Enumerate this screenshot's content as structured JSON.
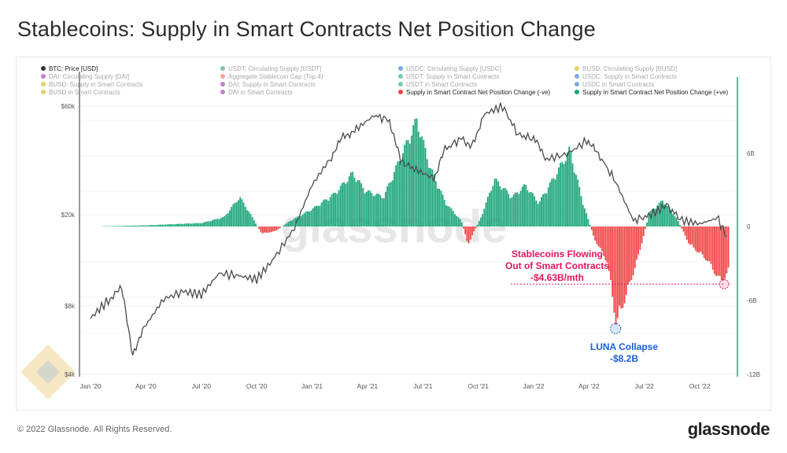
{
  "title": "Stablecoins: Supply in Smart Contracts Net Position Change",
  "footer": {
    "copyright": "© 2022 Glassnode. All Rights Reserved.",
    "brand": "glassnode"
  },
  "watermark": "glassnode",
  "colors": {
    "price": "#4a4a4a",
    "positive": "#1aa57a",
    "negative": "#f04545",
    "pink": "#e3165b",
    "blue": "#1a5fd6",
    "axis_right": "#1aa57a"
  },
  "chart_data": {
    "type": "bar",
    "legend": [
      {
        "label": "BTC: Price [USD]",
        "color": "#333333",
        "active": true
      },
      {
        "label": "USDT: Circulating Supply [USDT]",
        "color": "#26a17b",
        "active": false
      },
      {
        "label": "USDC: Circulating Supply [USDC]",
        "color": "#2775ca",
        "active": false
      },
      {
        "label": "BUSD: Circulating Supply [BUSD]",
        "color": "#d4b106",
        "active": false
      },
      {
        "label": "DAI: Circulating Supply [DAI]",
        "color": "#9c27b0",
        "active": false
      },
      {
        "label": "Aggregate Stablecoin Cap (Top 4)",
        "color": "#f06a45",
        "active": false
      },
      {
        "label": "USDT: Supply in Smart Contracts",
        "color": "#26a17b",
        "active": false
      },
      {
        "label": "USDC: Supply in Smart Contracts",
        "color": "#2775ca",
        "active": false
      },
      {
        "label": "BUSD: Supply in Smart Contracts",
        "color": "#d4b106",
        "active": false
      },
      {
        "label": "DAI: Supply in Smart Contracts",
        "color": "#9c27b0",
        "active": false
      },
      {
        "label": "USDT in Smart Contracts",
        "color": "#26a17b",
        "active": false
      },
      {
        "label": "USDC in Smart Contracts",
        "color": "#2775ca",
        "active": false
      },
      {
        "label": "BUSD in Smart Contracts",
        "color": "#d4b106",
        "active": false
      },
      {
        "label": "DAI in Smart Contracts",
        "color": "#9c27b0",
        "active": false
      },
      {
        "label": "Supply in Smart Contract Net Position Change (-ve)",
        "color": "#f04545",
        "active": true
      },
      {
        "label": "Supply in Smart Contract Net Position Change (+ve)",
        "color": "#1aa57a",
        "active": true
      }
    ],
    "x_ticks": [
      "Jan '20",
      "Apr '20",
      "Jul '20",
      "Oct '20",
      "Jan '21",
      "Apr '21",
      "Jul '21",
      "Oct '21",
      "Jan '22",
      "Apr '22",
      "Jul '22",
      "Oct '22"
    ],
    "y_left_ticks": [
      "$60k",
      "$20k",
      "$8k",
      "$4k"
    ],
    "y_right_ticks": [
      "6B",
      "0",
      "-6B",
      "-12B"
    ],
    "y_right_range": [
      -12,
      12
    ],
    "y_left_range": [
      4000,
      70000
    ],
    "y_left_scale": "log",
    "btc_price": [
      {
        "t": 2020.0,
        "v": 7200
      },
      {
        "t": 2020.08,
        "v": 8700
      },
      {
        "t": 2020.14,
        "v": 9800
      },
      {
        "t": 2020.19,
        "v": 5000
      },
      {
        "t": 2020.25,
        "v": 6700
      },
      {
        "t": 2020.33,
        "v": 8800
      },
      {
        "t": 2020.42,
        "v": 9500
      },
      {
        "t": 2020.5,
        "v": 9200
      },
      {
        "t": 2020.58,
        "v": 11500
      },
      {
        "t": 2020.67,
        "v": 11200
      },
      {
        "t": 2020.75,
        "v": 10800
      },
      {
        "t": 2020.83,
        "v": 13500
      },
      {
        "t": 2020.92,
        "v": 18500
      },
      {
        "t": 2021.0,
        "v": 29000
      },
      {
        "t": 2021.08,
        "v": 38000
      },
      {
        "t": 2021.14,
        "v": 48000
      },
      {
        "t": 2021.2,
        "v": 52000
      },
      {
        "t": 2021.28,
        "v": 60000
      },
      {
        "t": 2021.35,
        "v": 57000
      },
      {
        "t": 2021.4,
        "v": 37000
      },
      {
        "t": 2021.47,
        "v": 34000
      },
      {
        "t": 2021.55,
        "v": 31000
      },
      {
        "t": 2021.6,
        "v": 42000
      },
      {
        "t": 2021.67,
        "v": 47000
      },
      {
        "t": 2021.72,
        "v": 44000
      },
      {
        "t": 2021.78,
        "v": 61000
      },
      {
        "t": 2021.86,
        "v": 66000
      },
      {
        "t": 2021.93,
        "v": 49000
      },
      {
        "t": 2022.0,
        "v": 47000
      },
      {
        "t": 2022.06,
        "v": 38000
      },
      {
        "t": 2022.15,
        "v": 40000
      },
      {
        "t": 2022.24,
        "v": 46000
      },
      {
        "t": 2022.3,
        "v": 39000
      },
      {
        "t": 2022.37,
        "v": 30000
      },
      {
        "t": 2022.45,
        "v": 20000
      },
      {
        "t": 2022.52,
        "v": 21000
      },
      {
        "t": 2022.6,
        "v": 23500
      },
      {
        "t": 2022.67,
        "v": 20000
      },
      {
        "t": 2022.75,
        "v": 19300
      },
      {
        "t": 2022.83,
        "v": 20500
      },
      {
        "t": 2022.87,
        "v": 17000
      }
    ],
    "net_position_change_B": [
      {
        "t": 2020.0,
        "v": 0.0
      },
      {
        "t": 2020.25,
        "v": 0.1
      },
      {
        "t": 2020.5,
        "v": 0.3
      },
      {
        "t": 2020.6,
        "v": 0.8
      },
      {
        "t": 2020.67,
        "v": 2.5
      },
      {
        "t": 2020.72,
        "v": 1.0
      },
      {
        "t": 2020.77,
        "v": -0.6
      },
      {
        "t": 2020.83,
        "v": -0.4
      },
      {
        "t": 2020.9,
        "v": 0.5
      },
      {
        "t": 2021.0,
        "v": 1.5
      },
      {
        "t": 2021.1,
        "v": 2.8
      },
      {
        "t": 2021.18,
        "v": 4.5
      },
      {
        "t": 2021.24,
        "v": 3.0
      },
      {
        "t": 2021.32,
        "v": 2.5
      },
      {
        "t": 2021.4,
        "v": 6.0
      },
      {
        "t": 2021.47,
        "v": 9.0
      },
      {
        "t": 2021.53,
        "v": 5.0
      },
      {
        "t": 2021.6,
        "v": 2.0
      },
      {
        "t": 2021.67,
        "v": 0.5
      },
      {
        "t": 2021.7,
        "v": -1.5
      },
      {
        "t": 2021.76,
        "v": 0.8
      },
      {
        "t": 2021.82,
        "v": 4.0
      },
      {
        "t": 2021.9,
        "v": 2.5
      },
      {
        "t": 2021.96,
        "v": 3.5
      },
      {
        "t": 2022.02,
        "v": 2.0
      },
      {
        "t": 2022.1,
        "v": 4.5
      },
      {
        "t": 2022.16,
        "v": 6.5
      },
      {
        "t": 2022.22,
        "v": 2.0
      },
      {
        "t": 2022.27,
        "v": -1.0
      },
      {
        "t": 2022.33,
        "v": -3.0
      },
      {
        "t": 2022.37,
        "v": -8.2
      },
      {
        "t": 2022.42,
        "v": -5.5
      },
      {
        "t": 2022.47,
        "v": -2.5
      },
      {
        "t": 2022.52,
        "v": 1.2
      },
      {
        "t": 2022.58,
        "v": 2.2
      },
      {
        "t": 2022.64,
        "v": 0.8
      },
      {
        "t": 2022.7,
        "v": -1.5
      },
      {
        "t": 2022.78,
        "v": -2.8
      },
      {
        "t": 2022.84,
        "v": -4.63
      },
      {
        "t": 2022.88,
        "v": -3.8
      }
    ],
    "annotations": [
      {
        "id": "outflow",
        "lines": [
          "Stablecoins Flowing",
          "Out of Smart Contracts",
          "-$4.63B/mth"
        ],
        "color": "#e3165b",
        "t": 2022.86,
        "v": -4.63
      },
      {
        "id": "luna",
        "lines": [
          "LUNA Collapse",
          "-$8.2B"
        ],
        "color": "#1a5fd6",
        "t": 2022.37,
        "v": -8.2
      }
    ]
  }
}
